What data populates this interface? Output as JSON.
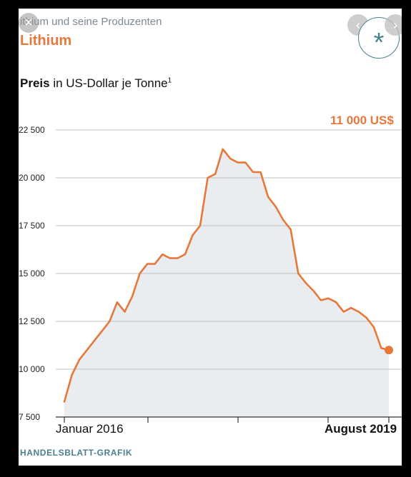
{
  "header": {
    "suptitle": "ithium und seine Produzenten",
    "title": "Lithium",
    "subtitle_bold": "Preis",
    "subtitle_rest": " in US-Dollar je Tonne",
    "subtitle_footnote": "1"
  },
  "footer": {
    "credit": "HANDELSBLATT-GRAFIK"
  },
  "viewer": {
    "close_icon": "×",
    "prev_icon": "‹",
    "next_icon": "›"
  },
  "colors": {
    "accent": "#e8773a",
    "area_fill": "#e9edf0",
    "grid": "#bfbfbf",
    "credit": "#4a7f90"
  },
  "chart_data": {
    "type": "area",
    "title": "Lithium",
    "ylabel": "Preis in US-Dollar je Tonne",
    "xlabel": "",
    "ylim": [
      7500,
      22500
    ],
    "yticks": [
      7500,
      10000,
      12500,
      15000,
      17500,
      20000,
      22500
    ],
    "ytick_labels": [
      "7 500",
      "10 000",
      "12 500",
      "15 000",
      "17 500",
      "20 000",
      "22 500"
    ],
    "x_start_label": "Januar 2016",
    "x_end_label": "August 2019",
    "end_value_label": "11 000 US$",
    "grid": true,
    "series": [
      {
        "values": [
          8300,
          9700,
          10500,
          11000,
          11500,
          12000,
          12500,
          13500,
          13000,
          13800,
          15000,
          15500,
          15500,
          16000,
          15800,
          15800,
          16000,
          17000,
          17500,
          20000,
          20200,
          21500,
          21000,
          20800,
          20800,
          20300,
          20300,
          19000,
          18500,
          17800,
          17300,
          15000,
          14500,
          14100,
          13600,
          13700,
          13500,
          13000,
          13200,
          13000,
          12700,
          12200,
          11100,
          11000
        ]
      }
    ]
  }
}
